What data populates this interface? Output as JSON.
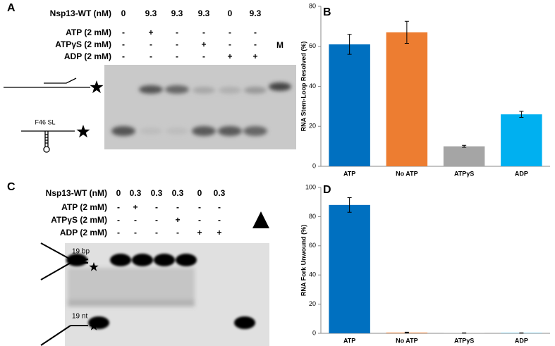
{
  "panel_a": {
    "letter": "A",
    "rows": [
      {
        "label": "Nsp13-WT (nM)",
        "lanes": [
          "0",
          "9.3",
          "9.3",
          "9.3",
          "0",
          "9.3"
        ]
      },
      {
        "label": "ATP (2 mM)",
        "lanes": [
          "-",
          "+",
          "-",
          "-",
          "-",
          "-"
        ]
      },
      {
        "label": "ATPγS (2 mM)",
        "lanes": [
          "-",
          "-",
          "-",
          "+",
          "-",
          "-"
        ]
      },
      {
        "label": "ADP (2 mM)",
        "lanes": [
          "-",
          "-",
          "-",
          "-",
          "+",
          "+"
        ]
      }
    ],
    "marker": "M",
    "structure_label": "F46 SL"
  },
  "panel_c": {
    "letter": "C",
    "rows": [
      {
        "label": "Nsp13-WT (nM)",
        "lanes": [
          "0",
          "0.3",
          "0.3",
          "0.3",
          "0",
          "0.3"
        ]
      },
      {
        "label": "ATP (2 mM)",
        "lanes": [
          "-",
          "+",
          "-",
          "-",
          "-",
          "-"
        ]
      },
      {
        "label": "ATPγS (2 mM)",
        "lanes": [
          "-",
          "-",
          "-",
          "+",
          "-",
          "-"
        ]
      },
      {
        "label": "ADP (2 mM)",
        "lanes": [
          "-",
          "-",
          "-",
          "-",
          "+",
          "+"
        ]
      }
    ],
    "top_label": "19 bp",
    "bottom_label": "19 nt"
  },
  "chart_data": [
    {
      "type": "bar",
      "letter": "B",
      "ylabel": "RNA Stem-Loop Resolved (%)",
      "categories": [
        "ATP",
        "No ATP",
        "ATPγS",
        "ADP"
      ],
      "values": [
        61,
        67,
        10,
        26
      ],
      "errors": [
        5,
        5.5,
        0.5,
        1.5
      ],
      "colors": [
        "#0070c0",
        "#ed7d31",
        "#a5a5a5",
        "#00b0f0"
      ],
      "ylim": [
        0,
        80
      ],
      "yticks": [
        0,
        20,
        40,
        60,
        80
      ]
    },
    {
      "type": "bar",
      "letter": "D",
      "ylabel": "RNA Fork Unwound (%)",
      "categories": [
        "ATP",
        "No ATP",
        "ATPγS",
        "ADP"
      ],
      "values": [
        88,
        0.5,
        0.2,
        0.2
      ],
      "errors": [
        5,
        0.3,
        0.1,
        0.1
      ],
      "colors": [
        "#0070c0",
        "#ed7d31",
        "#a5a5a5",
        "#00b0f0"
      ],
      "ylim": [
        0,
        100
      ],
      "yticks": [
        0,
        20,
        40,
        60,
        80,
        100
      ]
    }
  ]
}
